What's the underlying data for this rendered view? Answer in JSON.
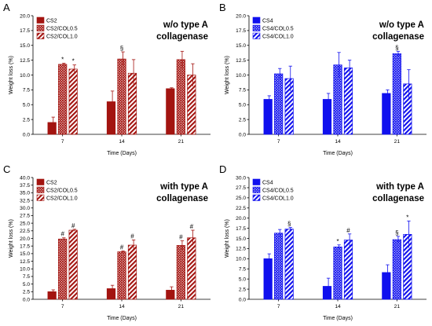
{
  "chart_data": [
    {
      "panel_label": "A",
      "type": "bar",
      "title_lines": [
        "w/o type A",
        "collagenase"
      ],
      "xlabel": "Time (Days)",
      "ylabel": "Weight loss (%)",
      "categories": [
        "7",
        "14",
        "21"
      ],
      "ylim": [
        0,
        20
      ],
      "yticks": [
        "0.0",
        "2.5",
        "5.0",
        "7.5",
        "10.0",
        "12.5",
        "15.0",
        "17.5",
        "20.0"
      ],
      "color": "#a31410",
      "series": [
        {
          "name": "CS2",
          "pattern": "solid",
          "values": [
            2.0,
            5.5,
            7.7
          ],
          "errors": [
            0.9,
            1.8,
            0.15
          ],
          "marks": [
            "",
            "",
            ""
          ]
        },
        {
          "name": "CS2/COL0.5",
          "pattern": "cross",
          "values": [
            11.8,
            12.7,
            12.6
          ],
          "errors": [
            0.2,
            1.2,
            1.4
          ],
          "marks": [
            "*",
            "§",
            ""
          ]
        },
        {
          "name": "CS2/COL1.0",
          "pattern": "diag",
          "values": [
            11.0,
            10.3,
            10.0
          ],
          "errors": [
            0.7,
            2.3,
            1.9
          ],
          "marks": [
            "*",
            "",
            ""
          ]
        }
      ]
    },
    {
      "panel_label": "B",
      "type": "bar",
      "title_lines": [
        "w/o type A",
        "collagenase"
      ],
      "xlabel": "Time (Days)",
      "ylabel": "Weight loss (%)",
      "categories": [
        "7",
        "14",
        "21"
      ],
      "ylim": [
        0,
        20
      ],
      "yticks": [
        "0.0",
        "2.5",
        "5.0",
        "7.5",
        "10.0",
        "12.5",
        "15.0",
        "17.5",
        "20.0"
      ],
      "color": "#1010ee",
      "series": [
        {
          "name": "CS4",
          "pattern": "solid",
          "values": [
            5.9,
            5.9,
            6.9
          ],
          "errors": [
            0.6,
            1.0,
            0.6
          ],
          "marks": [
            "",
            "",
            ""
          ]
        },
        {
          "name": "CS4/COL0.5",
          "pattern": "cross",
          "values": [
            10.2,
            11.7,
            13.6
          ],
          "errors": [
            0.9,
            2.1,
            0.4
          ],
          "marks": [
            "",
            "",
            "§"
          ]
        },
        {
          "name": "CS4/COL1.0",
          "pattern": "diag",
          "values": [
            9.4,
            11.2,
            8.5
          ],
          "errors": [
            2.1,
            1.3,
            2.4
          ],
          "marks": [
            "",
            "",
            ""
          ]
        }
      ]
    },
    {
      "panel_label": "C",
      "type": "bar",
      "title_lines": [
        "with type A",
        "collagenase"
      ],
      "xlabel": "Time (Days)",
      "ylabel": "Weight loss (%)",
      "categories": [
        "7",
        "14",
        "21"
      ],
      "ylim": [
        0,
        40
      ],
      "yticks": [
        "0.0",
        "2.5",
        "5.0",
        "7.5",
        "10.0",
        "12.5",
        "15.0",
        "17.5",
        "20.0",
        "22.5",
        "25.0",
        "27.5",
        "30.0",
        "32.5",
        "35.0",
        "37.5",
        "40.0"
      ],
      "color": "#a31410",
      "series": [
        {
          "name": "CS2",
          "pattern": "solid",
          "values": [
            2.5,
            3.5,
            3.0
          ],
          "errors": [
            0.6,
            1.1,
            1.1
          ],
          "marks": [
            "",
            "",
            ""
          ]
        },
        {
          "name": "CS2/COL0.5",
          "pattern": "cross",
          "values": [
            19.8,
            15.6,
            17.7
          ],
          "errors": [
            0.4,
            0.3,
            1.5
          ],
          "marks": [
            "#",
            "#",
            "#"
          ]
        },
        {
          "name": "CS2/COL1.0",
          "pattern": "diag",
          "values": [
            22.7,
            17.8,
            20.2
          ],
          "errors": [
            0.3,
            1.7,
            2.5
          ],
          "marks": [
            "#",
            "#",
            "#"
          ]
        }
      ]
    },
    {
      "panel_label": "D",
      "type": "bar",
      "title_lines": [
        "with type A",
        "collagenase"
      ],
      "xlabel": "Time (Days)",
      "ylabel": "Weight loss (%)",
      "categories": [
        "7",
        "14",
        "21"
      ],
      "ylim": [
        0,
        30
      ],
      "yticks": [
        "0.0",
        "2.5",
        "5.0",
        "7.5",
        "10.0",
        "12.5",
        "15.0",
        "17.5",
        "20.0",
        "22.5",
        "25.0",
        "27.5",
        "30.0"
      ],
      "color": "#1010ee",
      "series": [
        {
          "name": "CS4",
          "pattern": "solid",
          "values": [
            10.0,
            3.2,
            6.6
          ],
          "errors": [
            1.2,
            2.0,
            1.9
          ],
          "marks": [
            "",
            "",
            ""
          ]
        },
        {
          "name": "CS4/COL0.5",
          "pattern": "cross",
          "values": [
            16.3,
            12.9,
            14.7
          ],
          "errors": [
            0.9,
            0.5,
            0.8
          ],
          "marks": [
            "",
            "*",
            "§"
          ]
        },
        {
          "name": "CS4/COL1.0",
          "pattern": "diag",
          "values": [
            17.3,
            14.6,
            16.0
          ],
          "errors": [
            0.4,
            1.5,
            3.3
          ],
          "marks": [
            "§",
            "#",
            "*"
          ]
        }
      ]
    }
  ]
}
